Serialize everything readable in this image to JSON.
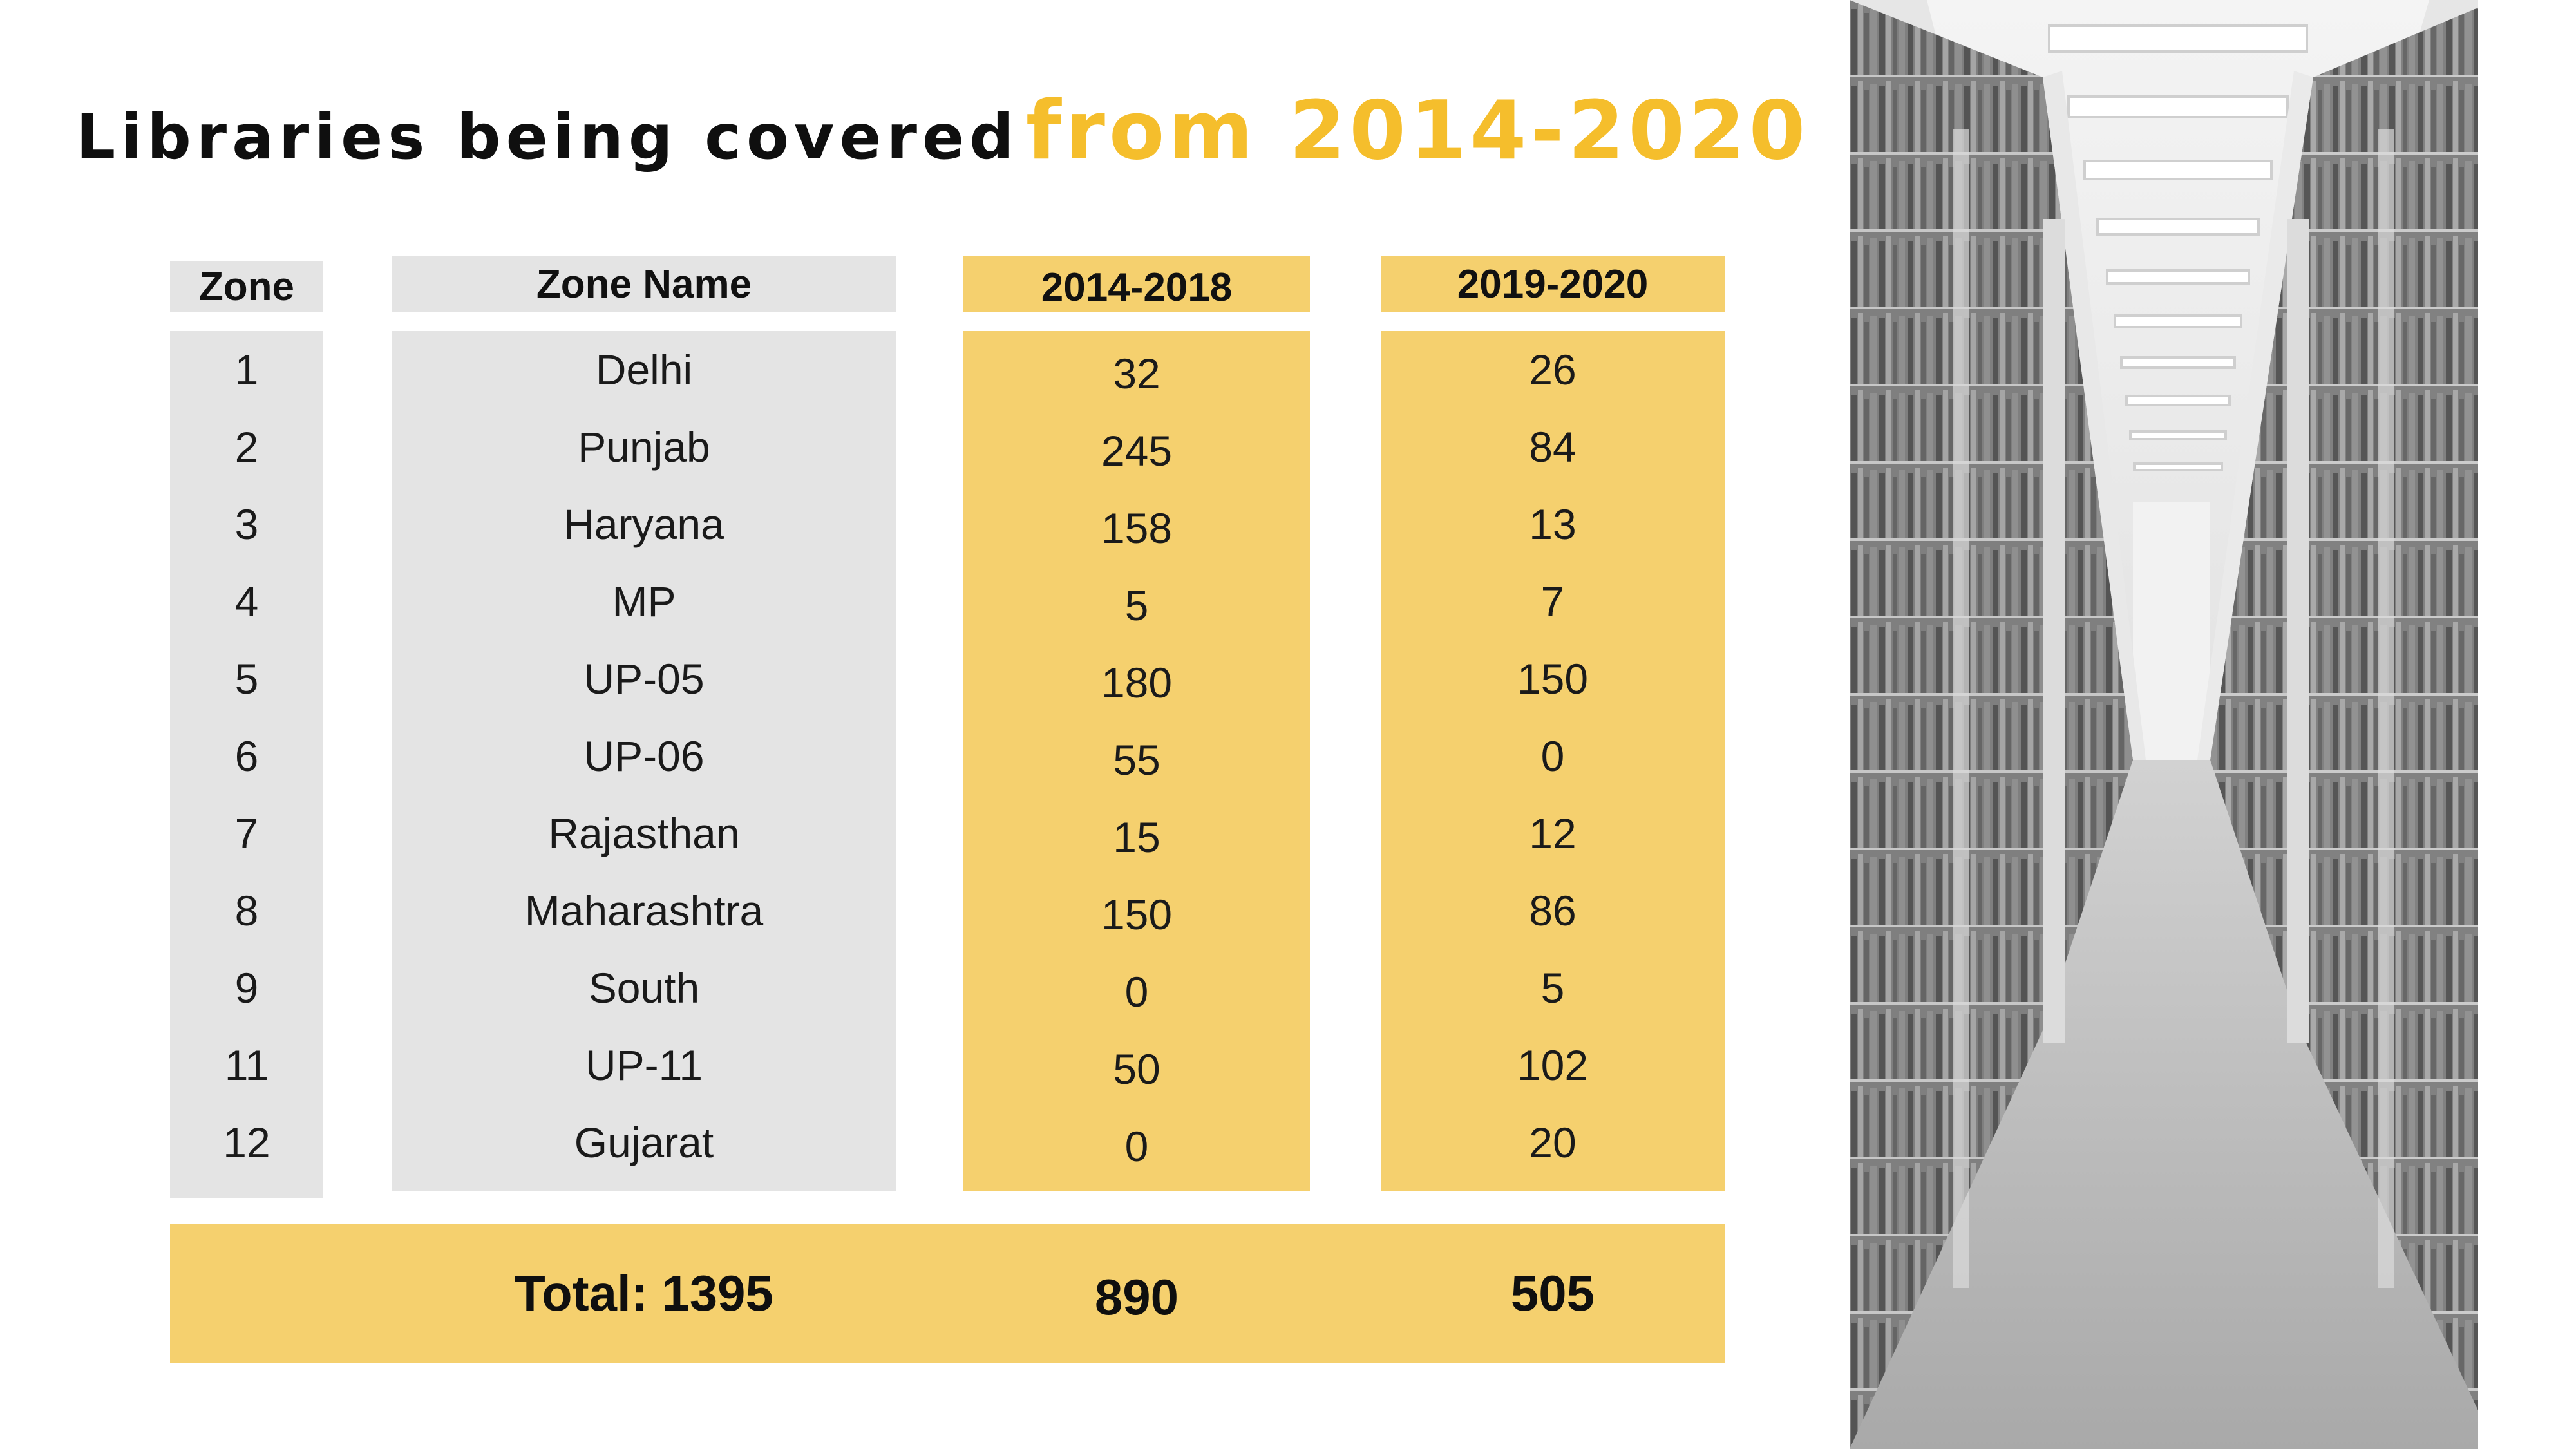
{
  "title": {
    "part1": "Libraries being covered",
    "part2": "from 2014-2020"
  },
  "table": {
    "headers": {
      "zone": "Zone",
      "zone_name": "Zone Name",
      "period1": "2014-2018",
      "period2": "2019-2020"
    },
    "rows": [
      {
        "zone": "1",
        "name": "Delhi",
        "p1": "32",
        "p2": "26"
      },
      {
        "zone": "2",
        "name": "Punjab",
        "p1": "245",
        "p2": "84"
      },
      {
        "zone": "3",
        "name": "Haryana",
        "p1": "158",
        "p2": "13"
      },
      {
        "zone": "4",
        "name": "MP",
        "p1": "5",
        "p2": "7"
      },
      {
        "zone": "5",
        "name": "UP-05",
        "p1": "180",
        "p2": "150"
      },
      {
        "zone": "6",
        "name": "UP-06",
        "p1": "55",
        "p2": "0"
      },
      {
        "zone": "7",
        "name": "Rajasthan",
        "p1": "15",
        "p2": "12"
      },
      {
        "zone": "8",
        "name": "Maharashtra",
        "p1": "150",
        "p2": "86"
      },
      {
        "zone": "9",
        "name": "South",
        "p1": "0",
        "p2": "5"
      },
      {
        "zone": "11",
        "name": "UP-11",
        "p1": "50",
        "p2": "102"
      },
      {
        "zone": "12",
        "name": "Gujarat",
        "p1": "0",
        "p2": "20"
      }
    ],
    "total": {
      "label": "Total: 1395",
      "p1": "890",
      "p2": "505"
    }
  },
  "colors": {
    "gold_title": "#f5be2c",
    "yellow_fill": "#f5d06e",
    "gray_fill": "#e4e4e4"
  },
  "image": {
    "icon": "library-shelves-photo"
  },
  "chart_data": {
    "type": "table",
    "title": "Libraries being covered from 2014-2020",
    "columns": [
      "Zone",
      "Zone Name",
      "2014-2018",
      "2019-2020"
    ],
    "rows": [
      [
        1,
        "Delhi",
        32,
        26
      ],
      [
        2,
        "Punjab",
        245,
        84
      ],
      [
        3,
        "Haryana",
        158,
        13
      ],
      [
        4,
        "MP",
        5,
        7
      ],
      [
        5,
        "UP-05",
        180,
        150
      ],
      [
        6,
        "UP-06",
        55,
        0
      ],
      [
        7,
        "Rajasthan",
        15,
        12
      ],
      [
        8,
        "Maharashtra",
        150,
        86
      ],
      [
        9,
        "South",
        0,
        5
      ],
      [
        11,
        "UP-11",
        50,
        102
      ],
      [
        12,
        "Gujarat",
        0,
        20
      ]
    ],
    "totals": {
      "label": "Total: 1395",
      "2014-2018": 890,
      "2019-2020": 505
    }
  }
}
